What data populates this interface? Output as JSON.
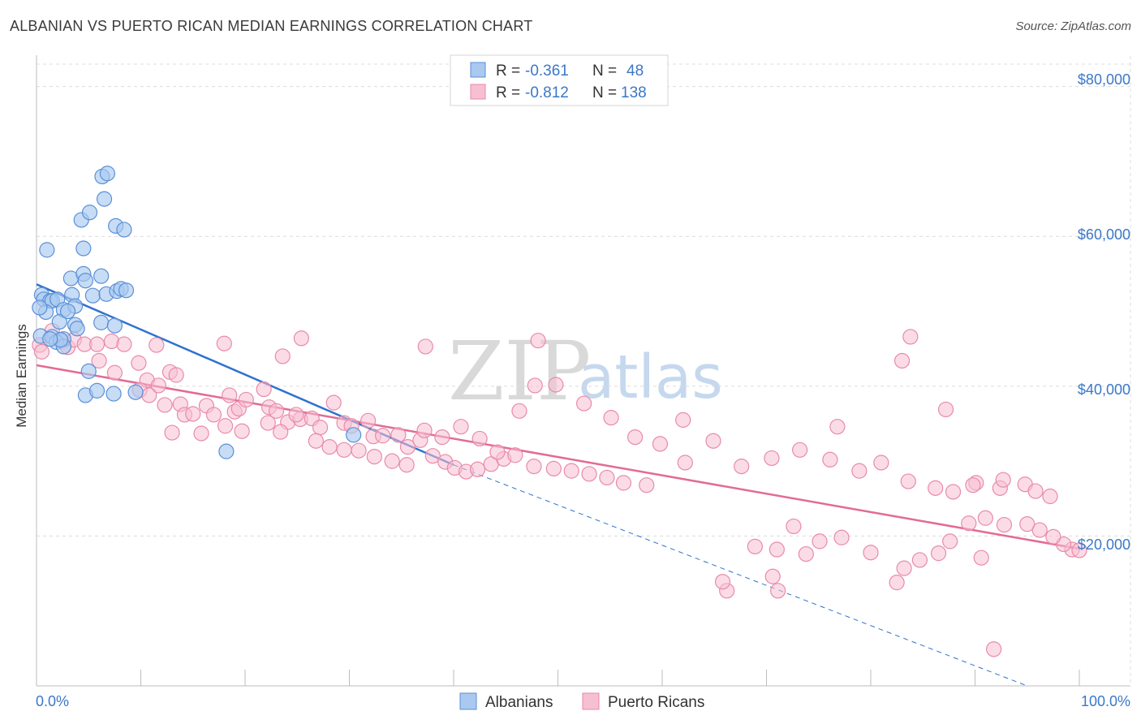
{
  "title": "ALBANIAN VS PUERTO RICAN MEDIAN EARNINGS CORRELATION CHART",
  "source": "Source: ZipAtlas.com",
  "watermark": {
    "zip": "ZIP",
    "atlas": "atlas"
  },
  "colors": {
    "albanian_fill": "#a9c9f0",
    "albanian_stroke": "#5b8fd6",
    "albanian_line": "#2f72d0",
    "pr_fill": "#f7bfd2",
    "pr_stroke": "#e98aa9",
    "pr_line": "#e26b95",
    "grid": "#dcdcdc",
    "tick_label": "#3a78c9"
  },
  "legend": {
    "rows": [
      {
        "r_label": "R = ",
        "r_value": "-0.361",
        "n_label": "N = ",
        "n_value": "48"
      },
      {
        "r_label": "R = ",
        "r_value": "-0.812",
        "n_label": "N = ",
        "n_value": "138"
      }
    ]
  },
  "bottom_legend": {
    "albanians": "Albanians",
    "puerto_ricans": "Puerto Ricans"
  },
  "chart_data": {
    "type": "scatter",
    "title": "ALBANIAN VS PUERTO RICAN MEDIAN EARNINGS CORRELATION CHART",
    "xlabel": "",
    "ylabel": "Median Earnings",
    "xlim": [
      0,
      100
    ],
    "ylim": [
      0,
      83000
    ],
    "x_tick_labels": [
      "0.0%",
      "100.0%"
    ],
    "y_ticks": [
      20000,
      40000,
      60000,
      80000
    ],
    "y_tick_labels": [
      "$20,000",
      "$40,000",
      "$60,000",
      "$80,000"
    ],
    "series": [
      {
        "name": "Albanians",
        "r": -0.361,
        "n": 48,
        "trend": {
          "x0": 0,
          "y0": 53600,
          "x1": 40,
          "y1": 29500,
          "dash_to_x": 95,
          "dash_to_y": 0
        },
        "points": [
          [
            1,
            58200
          ],
          [
            3.3,
            54400
          ],
          [
            3.4,
            52200
          ],
          [
            4.5,
            58400
          ],
          [
            4.5,
            55000
          ],
          [
            4.7,
            54100
          ],
          [
            6.2,
            54700
          ],
          [
            5.4,
            52100
          ],
          [
            6.7,
            52300
          ],
          [
            7.7,
            52700
          ],
          [
            0.5,
            52200
          ],
          [
            0.7,
            51600
          ],
          [
            1.3,
            51400
          ],
          [
            1.5,
            51400
          ],
          [
            2.0,
            51600
          ],
          [
            2.6,
            50200
          ],
          [
            3.7,
            50700
          ],
          [
            0.9,
            49900
          ],
          [
            2.2,
            48600
          ],
          [
            3.7,
            48200
          ],
          [
            3.9,
            47700
          ],
          [
            6.2,
            48500
          ],
          [
            7.5,
            48100
          ],
          [
            0.4,
            46700
          ],
          [
            1.5,
            46600
          ],
          [
            2.6,
            46300
          ],
          [
            1.9,
            45900
          ],
          [
            2.6,
            45300
          ],
          [
            5.0,
            42000
          ],
          [
            4.7,
            38800
          ],
          [
            5.8,
            39400
          ],
          [
            7.4,
            39000
          ],
          [
            9.5,
            39200
          ],
          [
            4.3,
            62200
          ],
          [
            5.1,
            63200
          ],
          [
            6.3,
            68000
          ],
          [
            6.5,
            65000
          ],
          [
            6.8,
            68400
          ],
          [
            7.6,
            61400
          ],
          [
            8.4,
            60900
          ],
          [
            8.1,
            53000
          ],
          [
            8.6,
            52800
          ],
          [
            18.2,
            31300
          ],
          [
            30.4,
            33500
          ],
          [
            2.3,
            46200
          ],
          [
            1.3,
            46300
          ],
          [
            3.0,
            50000
          ],
          [
            0.3,
            50500
          ]
        ]
      },
      {
        "name": "Puerto Ricans",
        "r": -0.812,
        "n": 138,
        "trend": {
          "x0": 0,
          "y0": 42800,
          "x1": 100,
          "y1": 18300
        },
        "points": [
          [
            0.3,
            45500
          ],
          [
            0.5,
            44600
          ],
          [
            1.5,
            47400
          ],
          [
            2.5,
            46000
          ],
          [
            3.0,
            45200
          ],
          [
            3.6,
            46200
          ],
          [
            4.6,
            45600
          ],
          [
            5.8,
            45600
          ],
          [
            7.2,
            46000
          ],
          [
            8.4,
            45600
          ],
          [
            6.0,
            43400
          ],
          [
            7.5,
            41800
          ],
          [
            9.8,
            43100
          ],
          [
            10.6,
            40800
          ],
          [
            11.7,
            40100
          ],
          [
            12.8,
            41900
          ],
          [
            13.4,
            41500
          ],
          [
            9.9,
            39500
          ],
          [
            10.8,
            38800
          ],
          [
            12.3,
            37500
          ],
          [
            13.8,
            37600
          ],
          [
            14.2,
            36200
          ],
          [
            15.0,
            36300
          ],
          [
            16.3,
            37400
          ],
          [
            17.0,
            36200
          ],
          [
            18.5,
            38800
          ],
          [
            19.0,
            36600
          ],
          [
            19.4,
            37000
          ],
          [
            20.1,
            38200
          ],
          [
            21.8,
            39600
          ],
          [
            22.3,
            37200
          ],
          [
            23.0,
            36700
          ],
          [
            24.1,
            35200
          ],
          [
            25.3,
            35600
          ],
          [
            26.4,
            35700
          ],
          [
            27.2,
            34500
          ],
          [
            28.5,
            37800
          ],
          [
            29.5,
            35100
          ],
          [
            30.2,
            34700
          ],
          [
            31.8,
            35400
          ],
          [
            32.3,
            33300
          ],
          [
            33.2,
            33400
          ],
          [
            34.7,
            33500
          ],
          [
            35.6,
            31900
          ],
          [
            36.8,
            32800
          ],
          [
            38.0,
            30700
          ],
          [
            39.2,
            29900
          ],
          [
            40.1,
            29100
          ],
          [
            41.2,
            28600
          ],
          [
            42.3,
            28900
          ],
          [
            43.6,
            29600
          ],
          [
            44.8,
            30300
          ],
          [
            45.9,
            30800
          ],
          [
            47.7,
            29300
          ],
          [
            49.6,
            29000
          ],
          [
            51.3,
            28700
          ],
          [
            53.0,
            28300
          ],
          [
            54.7,
            27800
          ],
          [
            56.3,
            27100
          ],
          [
            58.5,
            26800
          ],
          [
            13.0,
            33800
          ],
          [
            15.8,
            33700
          ],
          [
            18.1,
            34700
          ],
          [
            19.7,
            34000
          ],
          [
            22.2,
            35100
          ],
          [
            23.4,
            33900
          ],
          [
            24.9,
            36200
          ],
          [
            26.8,
            32700
          ],
          [
            28.1,
            31900
          ],
          [
            29.5,
            31500
          ],
          [
            30.9,
            31400
          ],
          [
            32.4,
            30600
          ],
          [
            34.1,
            30000
          ],
          [
            35.5,
            29500
          ],
          [
            37.2,
            34100
          ],
          [
            38.9,
            33200
          ],
          [
            40.7,
            34600
          ],
          [
            42.5,
            33000
          ],
          [
            44.2,
            31200
          ],
          [
            46.3,
            36700
          ],
          [
            47.8,
            40100
          ],
          [
            49.8,
            40200
          ],
          [
            52.5,
            37700
          ],
          [
            55.1,
            35800
          ],
          [
            57.4,
            33200
          ],
          [
            59.8,
            32300
          ],
          [
            62.2,
            29800
          ],
          [
            64.9,
            32700
          ],
          [
            67.6,
            29300
          ],
          [
            70.5,
            30400
          ],
          [
            73.2,
            31500
          ],
          [
            76.1,
            30200
          ],
          [
            78.9,
            28700
          ],
          [
            81.0,
            29800
          ],
          [
            83.6,
            27300
          ],
          [
            86.2,
            26400
          ],
          [
            87.9,
            25900
          ],
          [
            90.1,
            27100
          ],
          [
            92.4,
            26400
          ],
          [
            94.8,
            26900
          ],
          [
            11.5,
            45500
          ],
          [
            18.0,
            45700
          ],
          [
            23.6,
            44000
          ],
          [
            25.4,
            46400
          ],
          [
            37.3,
            45300
          ],
          [
            48.1,
            46100
          ],
          [
            62.0,
            35500
          ],
          [
            76.8,
            34600
          ],
          [
            83.0,
            43400
          ],
          [
            83.8,
            46600
          ],
          [
            87.2,
            36900
          ],
          [
            89.8,
            26800
          ],
          [
            92.7,
            27500
          ],
          [
            95.8,
            26000
          ],
          [
            97.2,
            25300
          ],
          [
            99.3,
            18200
          ],
          [
            98.5,
            18900
          ],
          [
            97.5,
            19900
          ],
          [
            96.2,
            20800
          ],
          [
            95.0,
            21600
          ],
          [
            92.8,
            21500
          ],
          [
            91.0,
            22400
          ],
          [
            89.4,
            21700
          ],
          [
            87.6,
            19300
          ],
          [
            86.5,
            17700
          ],
          [
            84.7,
            16800
          ],
          [
            83.2,
            15700
          ],
          [
            82.5,
            13800
          ],
          [
            80.0,
            17800
          ],
          [
            77.2,
            19800
          ],
          [
            75.1,
            19300
          ],
          [
            72.6,
            21300
          ],
          [
            70.6,
            14600
          ],
          [
            71.1,
            12700
          ],
          [
            66.2,
            12700
          ],
          [
            65.8,
            13900
          ],
          [
            68.9,
            18600
          ],
          [
            71.0,
            18200
          ],
          [
            73.8,
            17600
          ],
          [
            90.6,
            17100
          ],
          [
            91.8,
            4900
          ],
          [
            100.0,
            18100
          ]
        ]
      }
    ]
  }
}
